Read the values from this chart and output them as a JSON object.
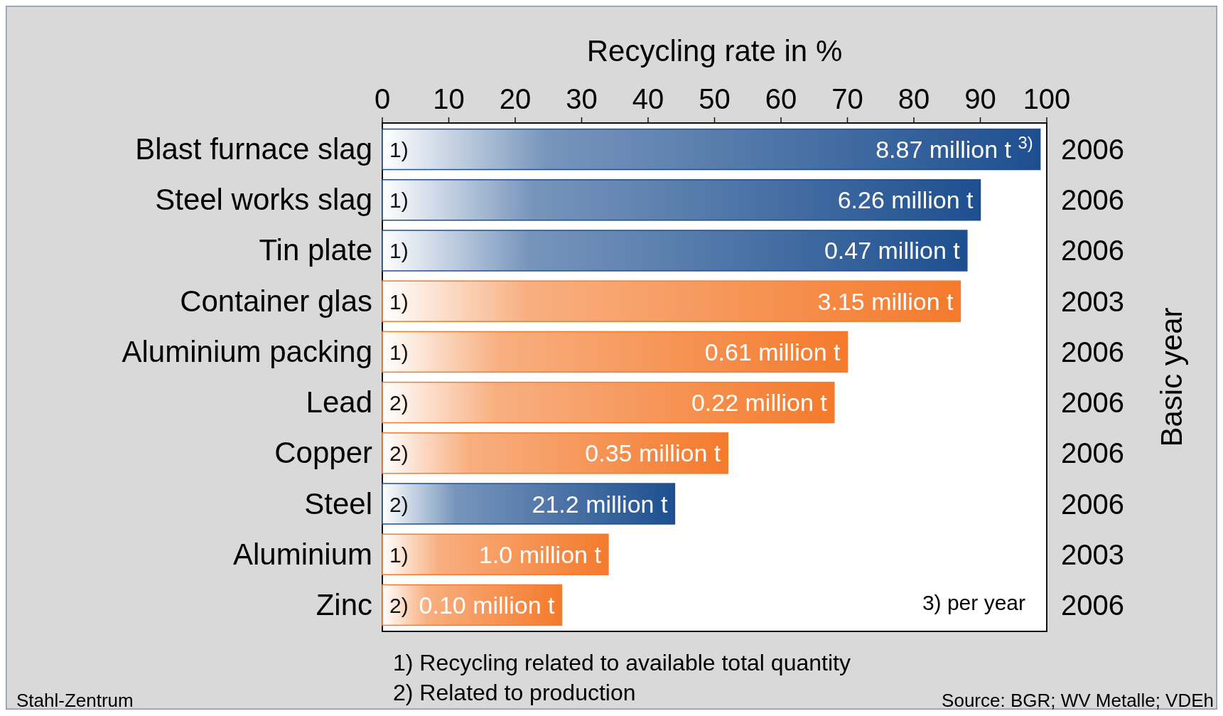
{
  "chart_data": {
    "type": "bar",
    "orientation": "horizontal",
    "xlabel": "Recycling rate in %",
    "y2label": "Basic year",
    "categories": [
      "Blast furnace slag",
      "Steel works slag",
      "Tin plate",
      "Container glas",
      "Aluminium packing",
      "Lead",
      "Copper",
      "Steel",
      "Aluminium",
      "Zinc"
    ],
    "values": [
      99,
      90,
      88,
      87,
      70,
      68,
      52,
      44,
      34,
      27
    ],
    "colors": [
      "#1d4f8f",
      "#1d4f8f",
      "#1d4f8f",
      "#f47a2c",
      "#f47a2c",
      "#f47a2c",
      "#f47a2c",
      "#1d4f8f",
      "#f47a2c",
      "#f47a2c"
    ],
    "xlim": [
      0,
      100
    ],
    "xticks": [
      0,
      10,
      20,
      30,
      40,
      50,
      60,
      70,
      80,
      90,
      100
    ],
    "annotations": [
      {
        "text": "8.87 million t $^{3)}$",
        "x": 99,
        "y": "Blast furnace slag"
      },
      {
        "text": "6.26 million t",
        "x": 90,
        "y": "Steel works slag"
      },
      {
        "text": "0.47 million t",
        "x": 88,
        "y": "Tin plate"
      },
      {
        "text": "3.15 million t",
        "x": 87,
        "y": "Container glas"
      },
      {
        "text": "0.61 million t",
        "x": 70,
        "y": "Aluminium packing"
      },
      {
        "text": "0.22 million t",
        "x": 68,
        "y": "Lead"
      },
      {
        "text": "0.35 million t",
        "x": 52,
        "y": "Copper"
      },
      {
        "text": "21.2 million t",
        "x": 44,
        "y": "Steel"
      },
      {
        "text": "1.0 million t",
        "x": 34,
        "y": "Aluminium"
      },
      {
        "text": "0.10 million t",
        "x": 27,
        "y": "Zinc"
      },
      "1)",
      "1)",
      "1)",
      "1)",
      "1)",
      "2)",
      "2)",
      "2)",
      "1)",
      "2)",
      "2006",
      "2006",
      "2006",
      "2003",
      "2006",
      "2006",
      "2006",
      "2006",
      "2003",
      "2006",
      "3) per year",
      "1) Recycling related to available total quantity",
      "2) Related to production",
      "Stahl-Zentrum",
      "Source: BGR; WV Metalle; VDEh"
    ]
  }
}
